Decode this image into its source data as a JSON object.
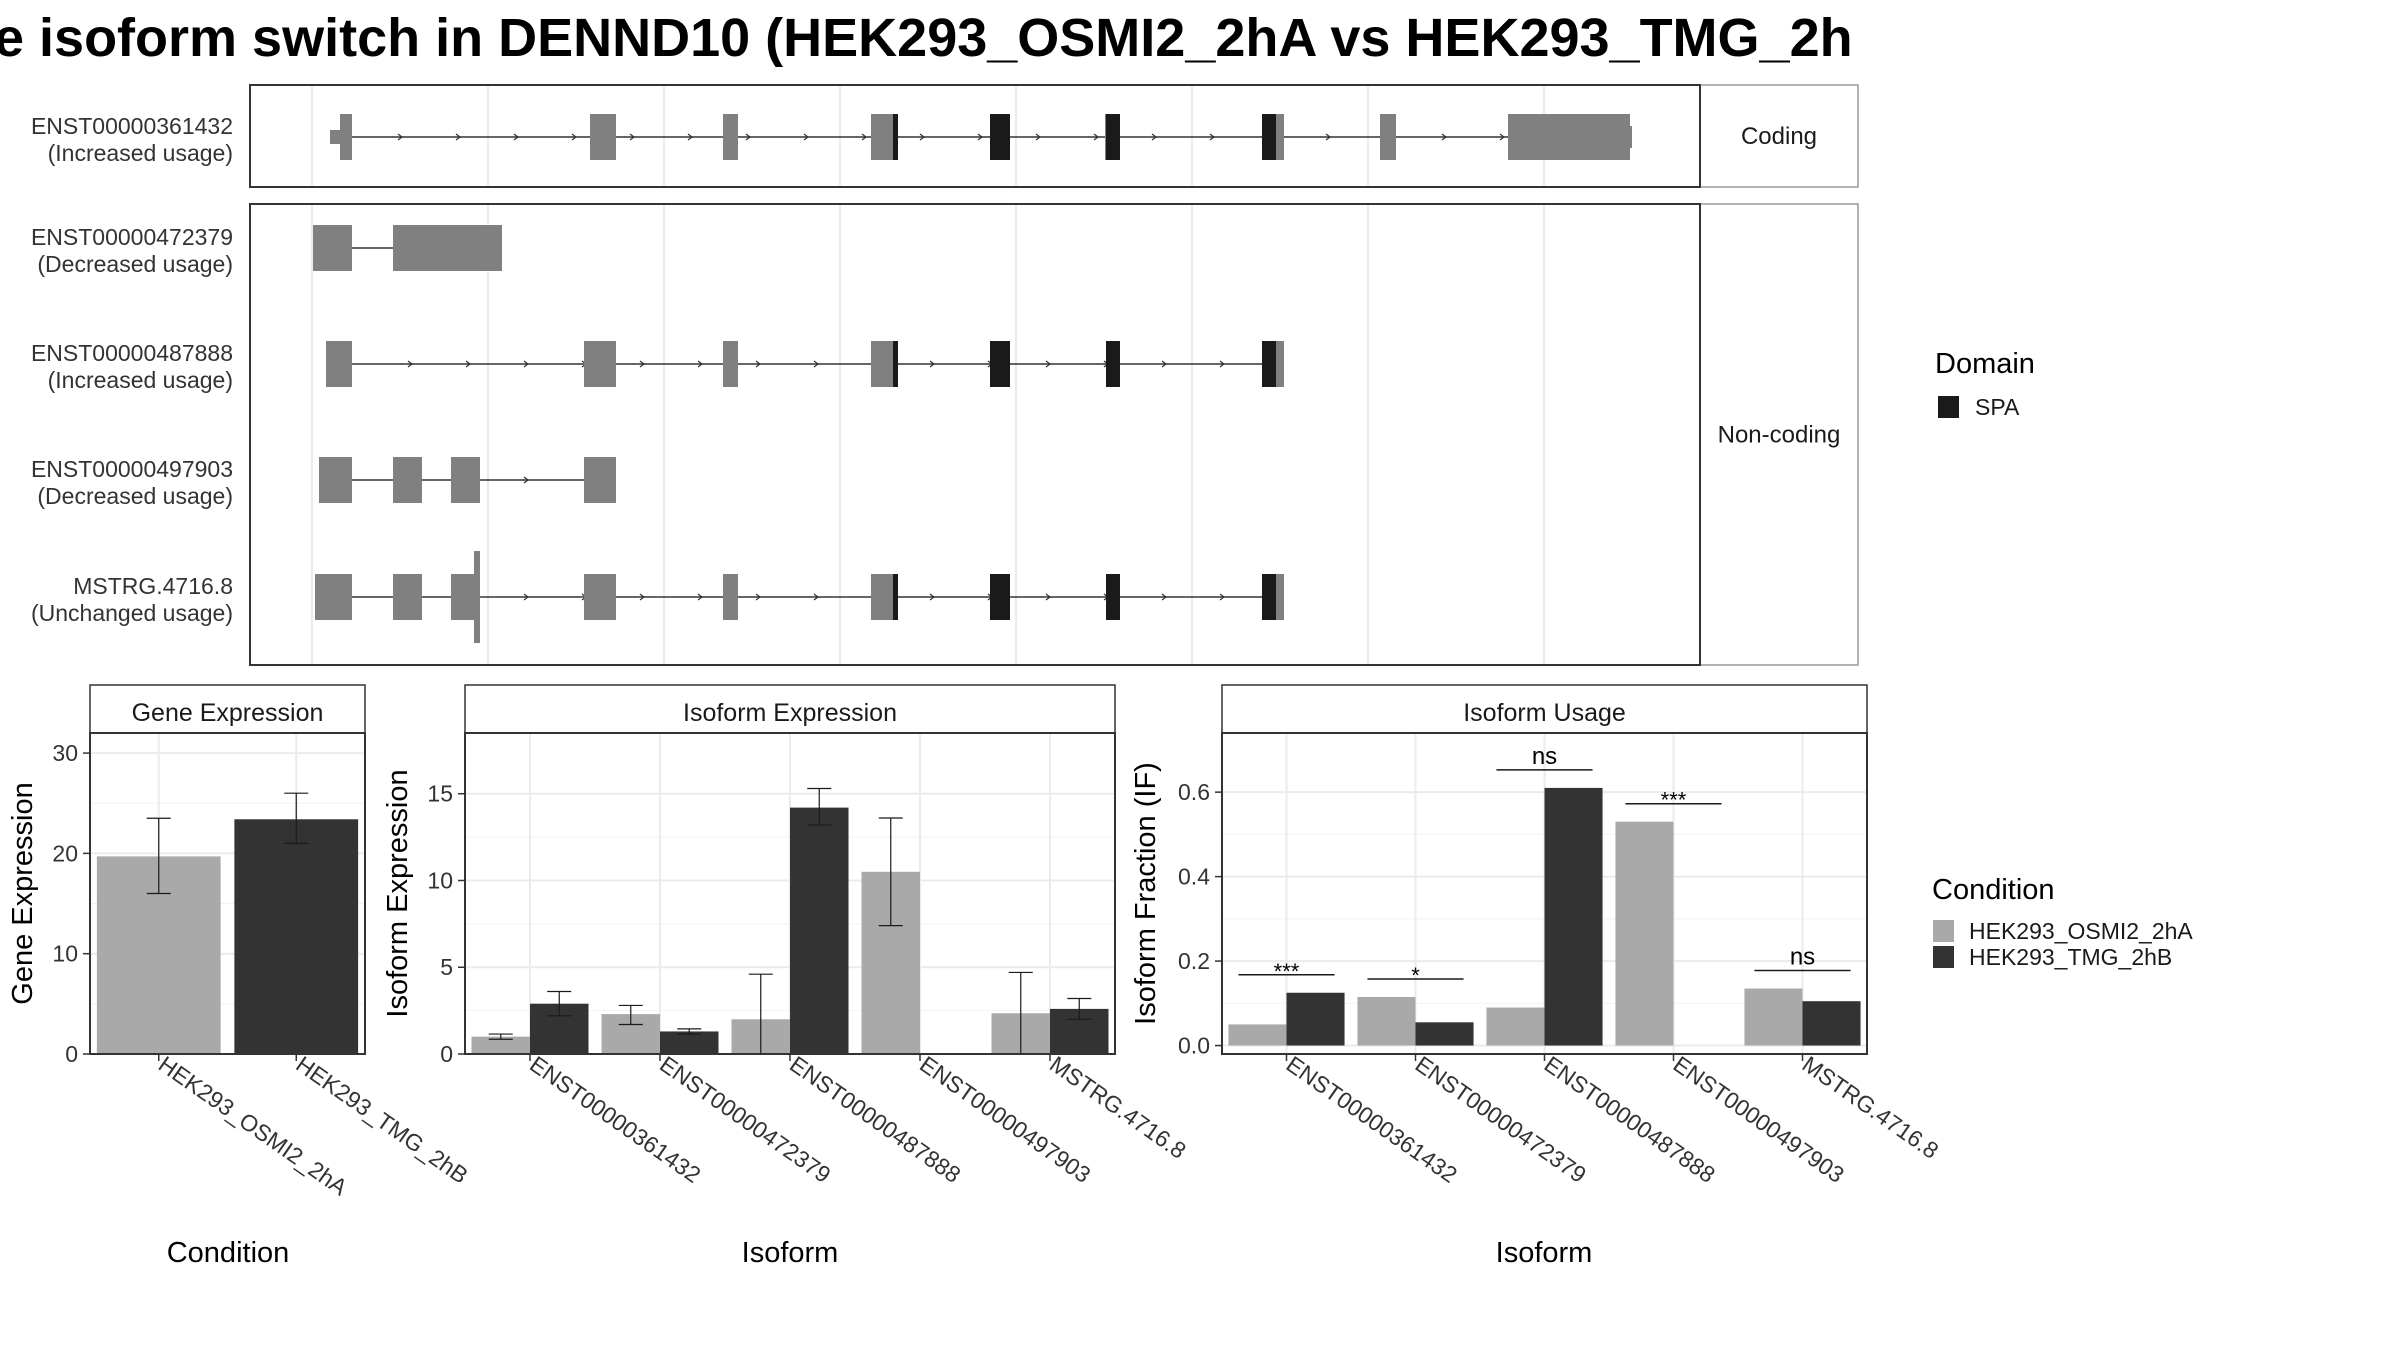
{
  "title": "e isoform switch in DENND10 (HEK293_OSMI2_2hA vs HEK293_TMG_2h",
  "colors": {
    "exon": "#808080",
    "domain": "#1a1a1a",
    "osmi": "#a9a9a9",
    "tmg": "#333333",
    "panel_border": "#333333",
    "strip_border": "#999999",
    "grid": "#ebebeb"
  },
  "structure": {
    "coding_label": "Coding",
    "noncoding_label": "Non-coding",
    "isoforms": [
      {
        "id": "ENST00000361432",
        "usage": "(Increased usage)"
      },
      {
        "id": "ENST00000472379",
        "usage": "(Decreased usage)"
      },
      {
        "id": "ENST00000487888",
        "usage": "(Increased usage)"
      },
      {
        "id": "ENST00000497903",
        "usage": "(Decreased usage)"
      },
      {
        "id": "MSTRG.4716.8",
        "usage": "(Unchanged usage)"
      }
    ]
  },
  "legend": {
    "domain_title": "Domain",
    "domain_item": "SPA",
    "condition_title": "Condition",
    "conditions": [
      "HEK293_OSMI2_2hA",
      "HEK293_TMG_2hB"
    ]
  },
  "chart_data": [
    {
      "type": "bar",
      "title": "Gene Expression",
      "xlabel": "Condition",
      "ylabel": "Gene Expression",
      "ylim": [
        0,
        32
      ],
      "yticks": [
        0,
        10,
        20,
        30
      ],
      "categories": [
        "HEK293_OSMI2_2hA",
        "HEK293_TMG_2hB"
      ],
      "values": [
        19.7,
        23.4
      ],
      "error_low": [
        16.0,
        21.0
      ],
      "error_high": [
        23.5,
        26.0
      ],
      "grid": true
    },
    {
      "type": "bar",
      "title": "Isoform Expression",
      "xlabel": "Isoform",
      "ylabel": "Isoform Expression",
      "ylim": [
        0,
        18.5
      ],
      "yticks": [
        0,
        5,
        10,
        15
      ],
      "categories": [
        "ENST00000361432",
        "ENST00000472379",
        "ENST00000487888",
        "ENST00000497903",
        "MSTRG.4716.8"
      ],
      "series": [
        {
          "name": "HEK293_OSMI2_2hA",
          "values": [
            1.0,
            2.3,
            2.0,
            10.5,
            2.35
          ],
          "error_low": [
            0.85,
            1.7,
            0.0,
            7.4,
            0.0
          ],
          "error_high": [
            1.15,
            2.8,
            4.6,
            13.6,
            4.7
          ]
        },
        {
          "name": "HEK293_TMG_2hB",
          "values": [
            2.9,
            1.3,
            14.2,
            0.0,
            2.6
          ],
          "error_low": [
            2.2,
            1.15,
            13.2,
            0.0,
            2.0
          ],
          "error_high": [
            3.6,
            1.45,
            15.3,
            0.0,
            3.2
          ]
        }
      ],
      "grid": true
    },
    {
      "type": "bar",
      "title": "Isoform Usage",
      "xlabel": "Isoform",
      "ylabel": "Isoform Fraction (IF)",
      "ylim": [
        -0.02,
        0.74
      ],
      "yticks": [
        0.0,
        0.2,
        0.4,
        0.6
      ],
      "categories": [
        "ENST00000361432",
        "ENST00000472379",
        "ENST00000487888",
        "ENST00000497903",
        "MSTRG.4716.8"
      ],
      "series": [
        {
          "name": "HEK293_OSMI2_2hA",
          "values": [
            0.05,
            0.115,
            0.09,
            0.53,
            0.135
          ]
        },
        {
          "name": "HEK293_TMG_2hB",
          "values": [
            0.125,
            0.055,
            0.61,
            0.0,
            0.105
          ]
        }
      ],
      "significance": [
        "***",
        "*",
        "ns",
        "***",
        "ns"
      ],
      "grid": true
    }
  ]
}
